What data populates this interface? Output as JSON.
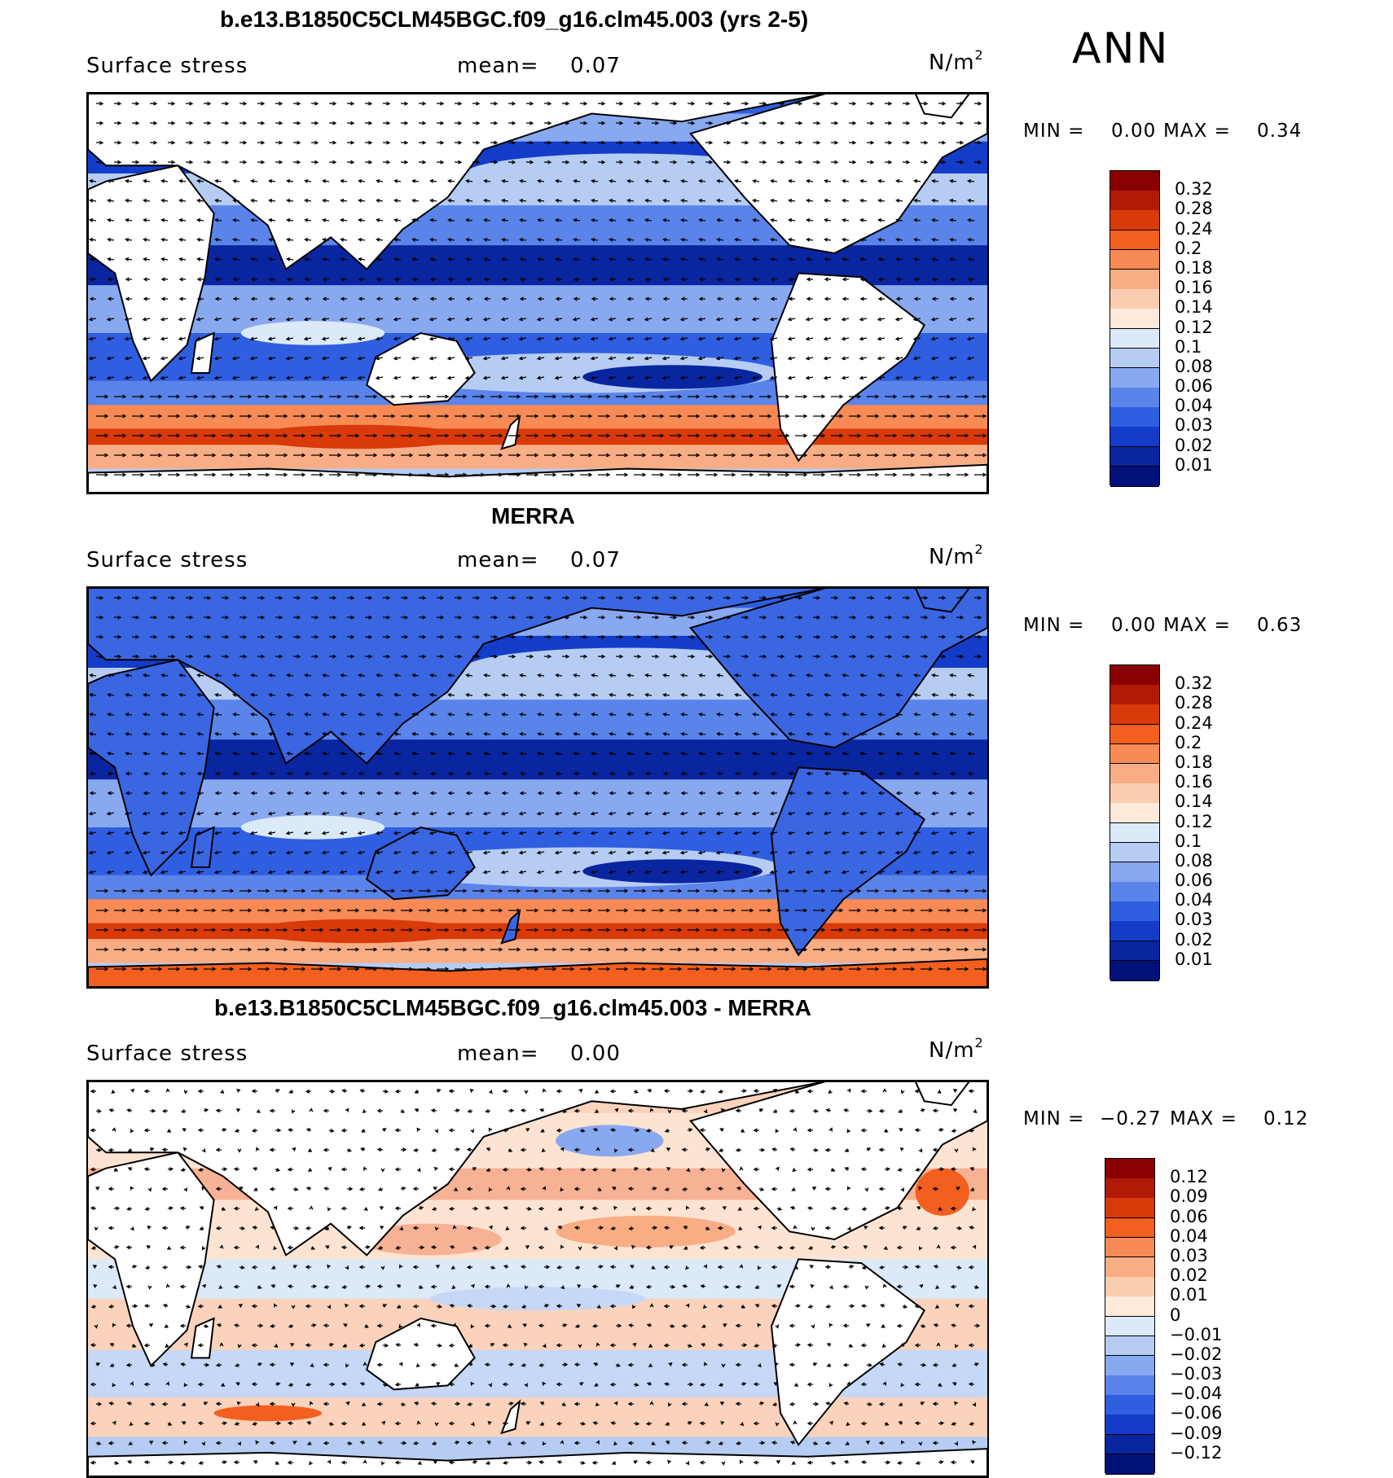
{
  "season": "ANN",
  "colors": {
    "continent_outline": "#000000",
    "vector": "#000000",
    "land_fill": "#ffffff"
  },
  "panels": [
    {
      "id": "model",
      "title": "b.e13.B1850C5CLM45BGC.f09_g16.clm45.003 (yrs 2-5)",
      "variable": "Surface stress",
      "mean_label": "mean=",
      "mean_value": "0.07",
      "unit_base": "N/m",
      "unit_exp": "2",
      "min_label": "MIN =",
      "min_value": "0.00",
      "max_label": "MAX =",
      "max_value": "0.34",
      "colorbar_ticks": [
        "0.32",
        "0.28",
        "0.24",
        "0.2",
        "0.18",
        "0.16",
        "0.14",
        "0.12",
        "0.1",
        "0.08",
        "0.06",
        "0.04",
        "0.03",
        "0.02",
        "0.01"
      ],
      "colorbar_colors": [
        "#8a0000",
        "#b01a06",
        "#d93a0a",
        "#f25f1e",
        "#f78a55",
        "#f9ad85",
        "#fbcdb0",
        "#fdeada",
        "#dce9f8",
        "#b6ccf3",
        "#88a9f0",
        "#5a84ea",
        "#2f5ee0",
        "#133cc8",
        "#0a25a0",
        "#00127a"
      ]
    },
    {
      "id": "obs",
      "title": "MERRA",
      "variable": "Surface stress",
      "mean_label": "mean=",
      "mean_value": "0.07",
      "unit_base": "N/m",
      "unit_exp": "2",
      "min_label": "MIN =",
      "min_value": "0.00",
      "max_label": "MAX =",
      "max_value": "0.63",
      "colorbar_ticks": [
        "0.32",
        "0.28",
        "0.24",
        "0.2",
        "0.18",
        "0.16",
        "0.14",
        "0.12",
        "0.1",
        "0.08",
        "0.06",
        "0.04",
        "0.03",
        "0.02",
        "0.01"
      ],
      "colorbar_colors": [
        "#8a0000",
        "#b01a06",
        "#d93a0a",
        "#f25f1e",
        "#f78a55",
        "#f9ad85",
        "#fbcdb0",
        "#fdeada",
        "#dce9f8",
        "#b6ccf3",
        "#88a9f0",
        "#5a84ea",
        "#2f5ee0",
        "#133cc8",
        "#0a25a0",
        "#00127a"
      ]
    },
    {
      "id": "diff",
      "title": "b.e13.B1850C5CLM45BGC.f09_g16.clm45.003 - MERRA",
      "variable": "Surface stress",
      "mean_label": "mean=",
      "mean_value": "0.00",
      "unit_base": "N/m",
      "unit_exp": "2",
      "min_label": "MIN =",
      "min_value": "−0.27",
      "max_label": "MAX =",
      "max_value": "0.12",
      "colorbar_ticks": [
        "0.12",
        "0.09",
        "0.06",
        "0.04",
        "0.03",
        "0.02",
        "0.01",
        "0",
        "−0.01",
        "−0.02",
        "−0.03",
        "−0.04",
        "−0.06",
        "−0.09",
        "−0.12"
      ],
      "colorbar_colors": [
        "#8a0000",
        "#b01a06",
        "#d93a0a",
        "#f25f1e",
        "#f78a55",
        "#f9ad85",
        "#fbcdb0",
        "#fdeada",
        "#dce9f8",
        "#b6ccf3",
        "#88a9f0",
        "#5a84ea",
        "#2f5ee0",
        "#133cc8",
        "#0a25a0",
        "#00127a"
      ]
    }
  ],
  "chart_data": [
    {
      "type": "heatmap",
      "title": "b.e13.B1850C5CLM45BGC.f09_g16.clm45.003 (yrs 2-5)",
      "variable": "Surface stress",
      "mean": 0.07,
      "min": 0.0,
      "max": 0.34,
      "units": "N/m2",
      "levels": [
        0.01,
        0.02,
        0.03,
        0.04,
        0.06,
        0.08,
        0.1,
        0.12,
        0.14,
        0.16,
        0.18,
        0.2,
        0.24,
        0.28,
        0.32
      ]
    },
    {
      "type": "heatmap",
      "title": "MERRA",
      "variable": "Surface stress",
      "mean": 0.07,
      "min": 0.0,
      "max": 0.63,
      "units": "N/m2",
      "levels": [
        0.01,
        0.02,
        0.03,
        0.04,
        0.06,
        0.08,
        0.1,
        0.12,
        0.14,
        0.16,
        0.18,
        0.2,
        0.24,
        0.28,
        0.32
      ]
    },
    {
      "type": "heatmap",
      "title": "b.e13.B1850C5CLM45BGC.f09_g16.clm45.003 - MERRA",
      "variable": "Surface stress",
      "mean": 0.0,
      "min": -0.27,
      "max": 0.12,
      "units": "N/m2",
      "levels": [
        -0.12,
        -0.09,
        -0.06,
        -0.04,
        -0.03,
        -0.02,
        -0.01,
        0,
        0.01,
        0.02,
        0.03,
        0.04,
        0.06,
        0.09,
        0.12
      ]
    }
  ]
}
